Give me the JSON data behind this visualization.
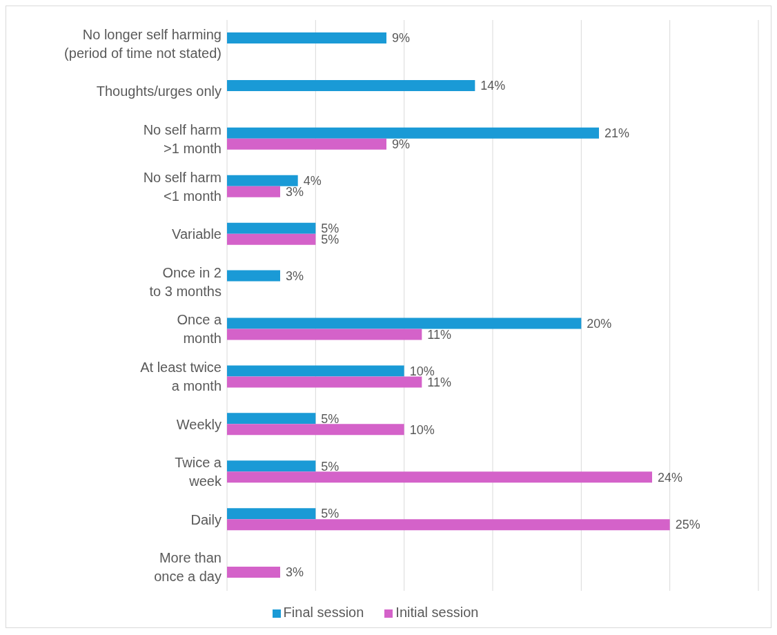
{
  "chart_data": {
    "type": "bar",
    "orientation": "horizontal",
    "categories": [
      "No longer self harming\n(period of time not stated)",
      "Thoughts/urges only",
      "No self harm\n>1 month",
      "No self harm\n<1 month",
      "Variable",
      "Once in 2\nto 3 months",
      "Once a\nmonth",
      "At least twice\na month",
      "Weekly",
      "Twice a\nweek",
      "Daily",
      "More than\nonce a day"
    ],
    "series": [
      {
        "name": "Final session",
        "color": "#1a9ad6",
        "values": [
          9,
          14,
          21,
          4,
          5,
          3,
          20,
          10,
          5,
          5,
          5,
          null
        ],
        "value_labels": [
          "9%",
          "14%",
          "21%",
          "4%",
          "5%",
          "3%",
          "20%",
          "10%",
          "5%",
          "5%",
          "5%",
          null
        ]
      },
      {
        "name": "Initial session",
        "color": "#d462c9",
        "values": [
          null,
          null,
          9,
          3,
          5,
          null,
          11,
          11,
          10,
          24,
          25,
          3
        ],
        "value_labels": [
          null,
          null,
          "9%",
          "3%",
          "5%",
          null,
          "11%",
          "11%",
          "10%",
          "24%",
          "25%",
          "3%"
        ]
      }
    ],
    "xlim": [
      0,
      30
    ],
    "xticks": [
      {
        "value": 0,
        "label": null
      },
      {
        "value": 5,
        "label": null
      },
      {
        "value": 10,
        "label": null
      },
      {
        "value": 15,
        "label": null
      },
      {
        "value": 20,
        "label": null
      },
      {
        "value": 25,
        "label": null
      },
      {
        "value": 30,
        "label": null
      }
    ],
    "tick_labels": "y",
    "grid": "x",
    "legend": "bottom"
  }
}
